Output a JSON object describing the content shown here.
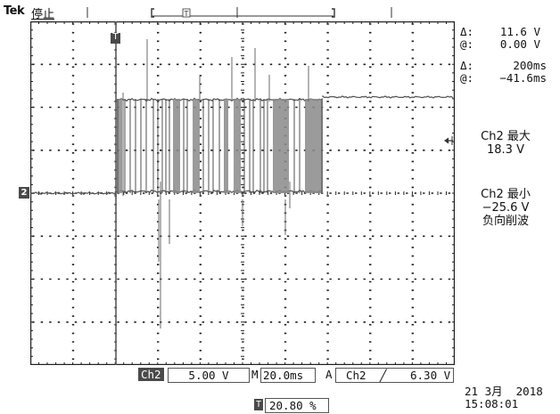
{
  "header": {
    "brand": "Tek",
    "run_state": "停止"
  },
  "cursors": {
    "delta_v": "11.6 V",
    "at_v": "0.00 V",
    "delta_t": "200ms",
    "at_t": "−41.6ms",
    "delta_symbol": "Δ:",
    "at_symbol": "@:"
  },
  "measurements": {
    "max_label": "Ch2 最大",
    "max_value": "18.3 V",
    "min_label": "Ch2 最小",
    "min_value": "−25.6 V",
    "min_note": "负向削波"
  },
  "markers": {
    "channel_marker": "2",
    "trigger_marker": "T"
  },
  "bottom": {
    "channel": "Ch2",
    "volts_div": "5.00 V",
    "timebase_prefix": "M",
    "timebase": "20.0ms",
    "trigger_mode": "A",
    "trigger_source": "Ch2",
    "trigger_slope": "╱",
    "trigger_level": "6.30 V",
    "trigger_position_icon": "T",
    "trigger_position": "20.80 %"
  },
  "datetime": {
    "date": "21 3月  2018",
    "time": "15:08:01"
  },
  "colors": {
    "trace": "#4f4f4f",
    "grid": "#1f1f1f",
    "chip_bg": "#4a4a4a"
  },
  "icons": {
    "trigger_marker": "trigger-t-icon",
    "channel_marker": "channel-2-icon",
    "level_arrow": "trigger-level-arrow-icon",
    "slope": "rising-edge-icon"
  }
}
